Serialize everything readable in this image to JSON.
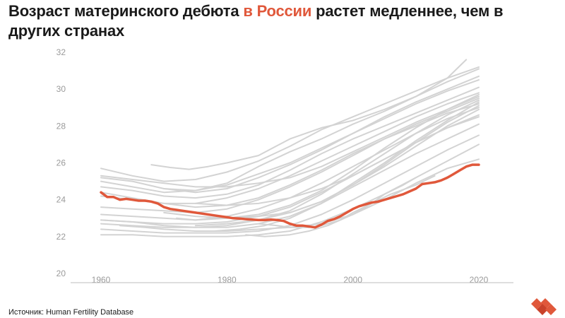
{
  "title": {
    "part1": "Возраст материнского дебюта ",
    "highlight": "в России",
    "part2": " растет медленнее, чем в других странах"
  },
  "source": "Источник: Human Fertility Database",
  "colors": {
    "accent": "#e0583b",
    "other_series": "#d3d3d3",
    "axis": "#bdbdbd",
    "text": "#1a1a1a",
    "tick": "#9a9a9a"
  },
  "logo_icon": "red-hearts-logo-icon",
  "chart_data": {
    "type": "line",
    "title": "Возраст материнского дебюта в России растет медленнее, чем в других странах",
    "xlabel": "",
    "ylabel": "",
    "xlim": [
      1955,
      2025
    ],
    "ylim": [
      20,
      32
    ],
    "x_ticks": [
      1960,
      1980,
      2000,
      2020
    ],
    "y_ticks": [
      20,
      22,
      24,
      26,
      28,
      30,
      32
    ],
    "grid": false,
    "legend": "none",
    "highlight_series": {
      "name": "Россия",
      "x": [
        1960,
        1961,
        1962,
        1963,
        1964,
        1965,
        1966,
        1967,
        1968,
        1969,
        1970,
        1971,
        1972,
        1973,
        1974,
        1975,
        1976,
        1977,
        1978,
        1979,
        1980,
        1981,
        1982,
        1983,
        1984,
        1985,
        1986,
        1987,
        1988,
        1989,
        1990,
        1991,
        1992,
        1993,
        1994,
        1995,
        1996,
        1997,
        1998,
        1999,
        2000,
        2001,
        2002,
        2003,
        2004,
        2005,
        2006,
        2007,
        2008,
        2009,
        2010,
        2011,
        2012,
        2013,
        2014,
        2015,
        2016,
        2017,
        2018,
        2019,
        2020
      ],
      "y": [
        24.4,
        24.15,
        24.15,
        24.0,
        24.05,
        24.0,
        23.95,
        23.95,
        23.9,
        23.8,
        23.6,
        23.5,
        23.45,
        23.4,
        23.35,
        23.3,
        23.25,
        23.2,
        23.15,
        23.1,
        23.05,
        23.0,
        22.98,
        22.95,
        22.92,
        22.9,
        22.9,
        22.92,
        22.9,
        22.85,
        22.7,
        22.6,
        22.6,
        22.55,
        22.5,
        22.65,
        22.85,
        22.95,
        23.1,
        23.3,
        23.5,
        23.65,
        23.75,
        23.85,
        23.9,
        24.0,
        24.1,
        24.2,
        24.3,
        24.45,
        24.6,
        24.85,
        24.9,
        24.95,
        25.05,
        25.2,
        25.4,
        25.6,
        25.8,
        25.9,
        25.9
      ]
    },
    "series": [
      {
        "x": [
          1960,
          1965,
          1970,
          1975,
          1980,
          1985,
          1990,
          1995,
          2000,
          2005,
          2010,
          2015,
          2020
        ],
        "y": [
          25.7,
          25.3,
          25.0,
          25.1,
          25.5,
          26.1,
          26.9,
          27.8,
          28.5,
          29.2,
          29.9,
          30.6,
          31.2
        ]
      },
      {
        "x": [
          1960,
          1965,
          1970,
          1975,
          1980,
          1985,
          1990,
          1995,
          2000,
          2005,
          2010,
          2015,
          2018
        ],
        "y": [
          25.2,
          25.0,
          24.6,
          24.5,
          24.9,
          25.8,
          26.6,
          27.3,
          28.1,
          28.8,
          29.6,
          30.6,
          31.6
        ]
      },
      {
        "x": [
          1968,
          1971,
          1974,
          1977,
          1980,
          1985,
          1990,
          1995,
          2000,
          2005,
          2010,
          2015,
          2020
        ],
        "y": [
          25.9,
          25.75,
          25.65,
          25.8,
          26.0,
          26.4,
          27.3,
          27.9,
          28.3,
          28.9,
          29.6,
          30.4,
          31.1
        ]
      },
      {
        "x": [
          1960,
          1965,
          1970,
          1975,
          1980,
          1985,
          1990,
          1995,
          2000,
          2005,
          2010,
          2015,
          2020
        ],
        "y": [
          25.0,
          24.7,
          24.4,
          24.5,
          24.8,
          25.4,
          26.0,
          26.8,
          27.6,
          28.4,
          29.2,
          29.9,
          30.5
        ]
      },
      {
        "x": [
          1960,
          1965,
          1970,
          1975,
          1980,
          1985,
          1990,
          1995,
          2000,
          2005,
          2010,
          2015,
          2020
        ],
        "y": [
          24.7,
          24.5,
          24.2,
          24.1,
          24.3,
          24.8,
          25.6,
          26.5,
          27.3,
          28.0,
          28.7,
          29.4,
          30.1
        ]
      },
      {
        "x": [
          1960,
          1965,
          1970,
          1975,
          1980,
          1985,
          1990,
          1995,
          2000,
          2005,
          2010,
          2015,
          2020
        ],
        "y": [
          24.2,
          24.0,
          23.8,
          23.8,
          24.1,
          24.6,
          25.3,
          26.1,
          26.9,
          27.7,
          28.5,
          29.2,
          29.8
        ]
      },
      {
        "x": [
          1960,
          1965,
          1970,
          1975,
          1980,
          1985,
          1990,
          1995,
          2000,
          2005,
          2010,
          2015,
          2020
        ],
        "y": [
          23.6,
          23.5,
          23.4,
          23.3,
          23.5,
          24.0,
          24.7,
          25.5,
          26.4,
          27.3,
          28.1,
          28.8,
          29.5
        ]
      },
      {
        "x": [
          1960,
          1965,
          1970,
          1975,
          1980,
          1985,
          1990,
          1995,
          2000,
          2005,
          2010,
          2015,
          2020
        ],
        "y": [
          23.2,
          23.1,
          23.0,
          22.9,
          23.1,
          23.5,
          24.1,
          24.9,
          25.8,
          26.7,
          27.6,
          28.4,
          29.0
        ]
      },
      {
        "x": [
          1960,
          1965,
          1970,
          1975,
          1980,
          1985,
          1990,
          1995,
          2000,
          2005,
          2010,
          2015,
          2020
        ],
        "y": [
          22.9,
          22.8,
          22.7,
          22.7,
          22.8,
          23.1,
          23.6,
          24.4,
          25.3,
          26.2,
          27.1,
          27.9,
          28.6
        ]
      },
      {
        "x": [
          1960,
          1965,
          1970,
          1975,
          1980,
          1985,
          1990,
          1995,
          2000,
          2005,
          2010,
          2015,
          2020
        ],
        "y": [
          22.7,
          22.6,
          22.5,
          22.5,
          22.5,
          22.7,
          23.1,
          23.8,
          24.7,
          25.6,
          26.5,
          27.3,
          28.1
        ]
      },
      {
        "x": [
          1960,
          1965,
          1970,
          1975,
          1980,
          1985,
          1990,
          1995,
          2000,
          2005,
          2010,
          2015,
          2020
        ],
        "y": [
          22.4,
          22.3,
          22.2,
          22.2,
          22.2,
          22.3,
          22.6,
          23.2,
          24.0,
          24.9,
          25.8,
          26.7,
          27.5
        ]
      },
      {
        "x": [
          1960,
          1965,
          1970,
          1975,
          1980,
          1985,
          1990,
          1995,
          2000,
          2005,
          2010,
          2015,
          2020
        ],
        "y": [
          22.1,
          22.1,
          22.0,
          22.0,
          22.0,
          22.1,
          22.3,
          22.8,
          23.5,
          24.3,
          25.2,
          26.1,
          27.0
        ]
      },
      {
        "x": [
          1960,
          1965,
          1970,
          1975,
          1980,
          1985,
          1990,
          1995,
          2000,
          2005,
          2010,
          2015,
          2020
        ],
        "y": [
          22.9,
          22.8,
          22.6,
          22.5,
          22.6,
          22.9,
          23.4,
          24.3,
          25.4,
          26.5,
          27.6,
          28.6,
          29.4
        ]
      },
      {
        "x": [
          1970,
          1975,
          1980,
          1985,
          1990,
          1995,
          2000,
          2005,
          2010,
          2015,
          2020
        ],
        "y": [
          24.6,
          24.4,
          24.6,
          25.2,
          25.9,
          26.7,
          27.6,
          28.5,
          29.3,
          30.0,
          30.7
        ]
      },
      {
        "x": [
          1972,
          1975,
          1980,
          1985,
          1990,
          1995,
          2000,
          2005,
          2010,
          2015,
          2020
        ],
        "y": [
          23.0,
          22.9,
          23.0,
          23.2,
          23.7,
          24.5,
          25.6,
          26.8,
          27.9,
          28.9,
          29.7
        ]
      },
      {
        "x": [
          1970,
          1975,
          1980,
          1985,
          1990,
          1995,
          2000,
          2005,
          2010,
          2015,
          2020
        ],
        "y": [
          23.3,
          23.1,
          23.0,
          23.1,
          23.3,
          23.9,
          24.8,
          25.9,
          27.1,
          28.2,
          29.1
        ]
      },
      {
        "x": [
          1975,
          1980,
          1985,
          1990,
          1995,
          2000,
          2005,
          2010,
          2015,
          2020
        ],
        "y": [
          22.6,
          22.7,
          22.9,
          23.3,
          23.9,
          24.8,
          25.8,
          26.9,
          28.0,
          28.9
        ]
      },
      {
        "x": [
          1978,
          1982,
          1986,
          1990,
          1995,
          2000,
          2005,
          2010,
          2015,
          2020
        ],
        "y": [
          22.3,
          22.4,
          22.6,
          23.0,
          23.8,
          24.9,
          26.0,
          27.2,
          28.3,
          29.3
        ]
      },
      {
        "x": [
          1975,
          1980,
          1985,
          1990,
          1995,
          2000,
          2005,
          2010,
          2015,
          2020
        ],
        "y": [
          23.8,
          23.7,
          23.8,
          24.1,
          24.6,
          25.3,
          26.2,
          27.1,
          27.9,
          28.5
        ]
      },
      {
        "x": [
          1985,
          1988,
          1990,
          1993,
          1995,
          1998,
          2000,
          2003,
          2005,
          2008,
          2010
        ],
        "y": [
          22.7,
          22.6,
          22.5,
          22.5,
          22.6,
          22.9,
          23.3,
          23.8,
          24.3,
          24.8,
          25.2
        ]
      },
      {
        "x": [
          1983,
          1986,
          1990,
          1993,
          1996,
          2000,
          2003,
          2006,
          2010,
          2013
        ],
        "y": [
          22.1,
          22.0,
          22.1,
          22.3,
          22.6,
          23.2,
          23.8,
          24.3,
          24.8,
          25.3
        ]
      },
      {
        "x": [
          1963,
          1967,
          1970,
          1975,
          1980,
          1985,
          1990,
          1995,
          2000,
          2005,
          2010,
          2015,
          2020
        ],
        "y": [
          22.6,
          22.5,
          22.4,
          22.3,
          22.3,
          22.4,
          22.5,
          22.7,
          23.2,
          24.0,
          24.9,
          25.7,
          26.2
        ]
      },
      {
        "x": [
          1960,
          1965,
          1970,
          1975,
          1980,
          1985,
          1990,
          1995,
          2000,
          2005,
          2010,
          2015,
          2020
        ],
        "y": [
          25.3,
          25.1,
          24.9,
          24.7,
          24.7,
          24.9,
          25.2,
          25.8,
          26.6,
          27.4,
          28.2,
          28.9,
          29.6
        ]
      },
      {
        "x": [
          1960,
          1965,
          1970,
          1975,
          1980,
          1985,
          1990,
          1995,
          2000,
          2005,
          2010,
          2015,
          2020
        ],
        "y": [
          24.4,
          24.1,
          23.8,
          23.6,
          23.7,
          24.1,
          24.8,
          25.6,
          26.5,
          27.3,
          28.0,
          28.7,
          29.2
        ]
      }
    ]
  }
}
